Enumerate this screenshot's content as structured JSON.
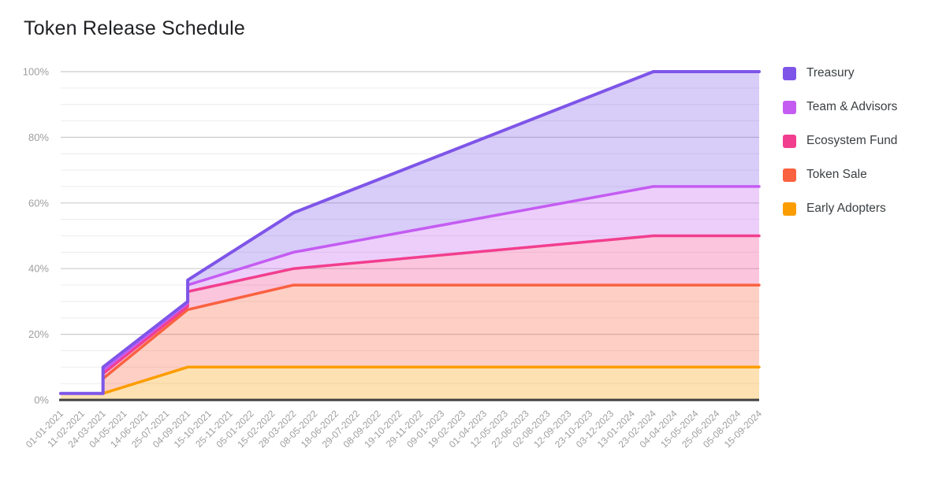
{
  "page": {
    "title": "Token Release Schedule",
    "background": "#ffffff"
  },
  "legend": {
    "position": "right",
    "items": [
      {
        "label": "Treasury",
        "color": "#7E55E8"
      },
      {
        "label": "Team & Advisors",
        "color": "#C45CF2"
      },
      {
        "label": "Ecosystem Fund",
        "color": "#F23E8E"
      },
      {
        "label": "Token Sale",
        "color": "#FA6140"
      },
      {
        "label": "Early Adopters",
        "color": "#FB9D00"
      }
    ]
  },
  "axes": {
    "y_tick_labels": [
      "0%",
      "20%",
      "40%",
      "60%",
      "80%",
      "100%"
    ],
    "y_tick_values": [
      0,
      20,
      40,
      60,
      80,
      100
    ],
    "label_color": "#9e9e9e",
    "major_grid_color": "#cccccc",
    "minor_grid_color": "#ececec",
    "baseline_color": "#3f3f3f"
  },
  "chart_data": {
    "type": "area",
    "stacked": true,
    "title": "Token Release Schedule",
    "legend_position": "right",
    "grid": {
      "major_step": 20,
      "minor_step": 5,
      "grid_on": true
    },
    "ylim": [
      0,
      100
    ],
    "x_labels": [
      "01-01-2021",
      "11-02-2021",
      "24-03-2021",
      "04-05-2021",
      "14-06-2021",
      "25-07-2021",
      "04-09-2021",
      "15-10-2021",
      "25-11-2021",
      "05-01-2022",
      "15-02-2022",
      "28-03-2022",
      "08-05-2022",
      "18-06-2022",
      "29-07-2022",
      "08-09-2022",
      "19-10-2022",
      "29-11-2022",
      "09-01-2023",
      "19-02-2023",
      "01-04-2023",
      "12-05-2023",
      "22-06-2023",
      "02-08-2023",
      "12-09-2023",
      "23-10-2023",
      "03-12-2023",
      "13-01-2024",
      "23-02-2024",
      "04-04-2024",
      "15-05-2024",
      "25-06-2024",
      "05-08-2024",
      "15-09-2024"
    ],
    "series": [
      {
        "key": "early_adopters",
        "name": "Early Adopters",
        "color": "#FB9D00",
        "final_allocation_pct": 10
      },
      {
        "key": "token_sale",
        "name": "Token Sale",
        "color": "#FA6140",
        "final_allocation_pct": 25
      },
      {
        "key": "ecosystem_fund",
        "name": "Ecosystem Fund",
        "color": "#F23E8E",
        "final_allocation_pct": 15
      },
      {
        "key": "team_advisors",
        "name": "Team & Advisors",
        "color": "#C45CF2",
        "final_allocation_pct": 15
      },
      {
        "key": "treasury",
        "name": "Treasury",
        "color": "#7E55E8",
        "final_allocation_pct": 35
      }
    ],
    "cumulative_keyframes": [
      {
        "date": "01-01-2021",
        "t": 0,
        "cum": {
          "early_adopters": 2,
          "token_sale": 2,
          "ecosystem_fund": 2,
          "team_advisors": 2,
          "treasury": 2
        }
      },
      {
        "date": "11-02-2021",
        "t": 1,
        "cum": {
          "early_adopters": 2,
          "token_sale": 2,
          "ecosystem_fund": 2,
          "team_advisors": 2,
          "treasury": 2
        }
      },
      {
        "date": "24-03-2021",
        "t": 2,
        "phase": "before",
        "cum": {
          "early_adopters": 2,
          "token_sale": 2,
          "ecosystem_fund": 2,
          "team_advisors": 2,
          "treasury": 2
        }
      },
      {
        "date": "24-03-2021",
        "t": 2,
        "phase": "after",
        "cum": {
          "early_adopters": 2,
          "token_sale": 6.5,
          "ecosystem_fund": 8,
          "team_advisors": 9,
          "treasury": 10
        }
      },
      {
        "date": "04-09-2021",
        "t": 6,
        "phase": "before",
        "cum": {
          "early_adopters": 10,
          "token_sale": 27.5,
          "ecosystem_fund": 28.5,
          "team_advisors": 29.5,
          "treasury": 30
        }
      },
      {
        "date": "04-09-2021",
        "t": 6,
        "phase": "after",
        "cum": {
          "early_adopters": 10,
          "token_sale": 27.5,
          "ecosystem_fund": 33,
          "team_advisors": 35,
          "treasury": 36.5
        }
      },
      {
        "date": "28-03-2022",
        "t": 11,
        "cum": {
          "early_adopters": 10,
          "token_sale": 35,
          "ecosystem_fund": 40,
          "team_advisors": 45,
          "treasury": 57
        }
      },
      {
        "date": "04-04-2024",
        "t": 28,
        "cum": {
          "early_adopters": 10,
          "token_sale": 35,
          "ecosystem_fund": 50,
          "team_advisors": 65,
          "treasury": 100
        }
      },
      {
        "date": "15-09-2024",
        "t": 33,
        "cum": {
          "early_adopters": 10,
          "token_sale": 35,
          "ecosystem_fund": 50,
          "team_advisors": 65,
          "treasury": 100
        }
      }
    ]
  }
}
